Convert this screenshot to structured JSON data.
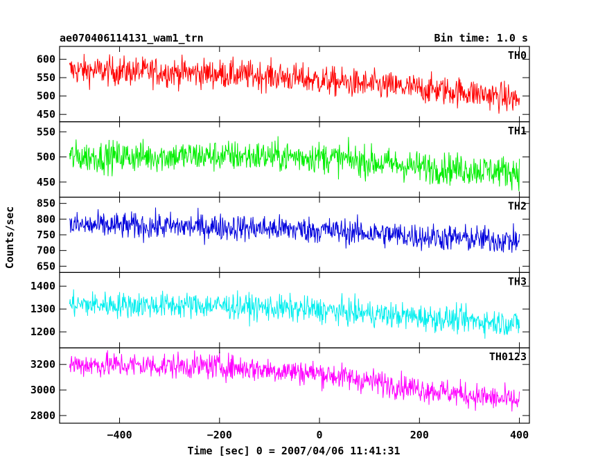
{
  "header": {
    "title": "ae070406114131_wam1_trn",
    "bin_time": "Bin time: 1.0 s"
  },
  "chart_data": {
    "type": "line",
    "xlabel": "Time [sec] 0 = 2007/04/06 11:41:31",
    "ylabel": "Counts/sec",
    "xlim": [
      -520,
      420
    ],
    "x_ticks": [
      -400,
      -200,
      0,
      200,
      400
    ],
    "x_range_data": [
      -500,
      400
    ],
    "bin_time_s": 1.0,
    "panels": [
      {
        "name": "TH0",
        "color": "#ff0000",
        "ylim": [
          430,
          635
        ],
        "y_ticks": [
          450,
          500,
          550,
          600
        ],
        "trend": [
          [
            -500,
            570
          ],
          [
            -300,
            565
          ],
          [
            -100,
            555
          ],
          [
            100,
            530
          ],
          [
            300,
            510
          ],
          [
            400,
            490
          ]
        ],
        "noise": 28
      },
      {
        "name": "TH1",
        "color": "#00ee00",
        "ylim": [
          420,
          570
        ],
        "y_ticks": [
          450,
          500,
          550
        ],
        "trend": [
          [
            -500,
            500
          ],
          [
            -200,
            502
          ],
          [
            0,
            500
          ],
          [
            200,
            480
          ],
          [
            400,
            470
          ]
        ],
        "noise": 22
      },
      {
        "name": "TH2",
        "color": "#0000dd",
        "ylim": [
          630,
          870
        ],
        "y_ticks": [
          650,
          700,
          750,
          800,
          850
        ],
        "trend": [
          [
            -500,
            780
          ],
          [
            -200,
            775
          ],
          [
            0,
            765
          ],
          [
            200,
            745
          ],
          [
            400,
            730
          ]
        ],
        "noise": 30
      },
      {
        "name": "TH3",
        "color": "#00eeee",
        "ylim": [
          1130,
          1460
        ],
        "y_ticks": [
          1200,
          1300,
          1400
        ],
        "trend": [
          [
            -500,
            1320
          ],
          [
            -200,
            1315
          ],
          [
            0,
            1295
          ],
          [
            200,
            1265
          ],
          [
            400,
            1235
          ]
        ],
        "noise": 40
      },
      {
        "name": "TH0123",
        "color": "#ff00ff",
        "ylim": [
          2740,
          3330
        ],
        "y_ticks": [
          2800,
          3000,
          3200
        ],
        "trend": [
          [
            -500,
            3200
          ],
          [
            -200,
            3185
          ],
          [
            0,
            3130
          ],
          [
            200,
            3010
          ],
          [
            400,
            2910
          ]
        ],
        "noise": 70
      }
    ]
  }
}
